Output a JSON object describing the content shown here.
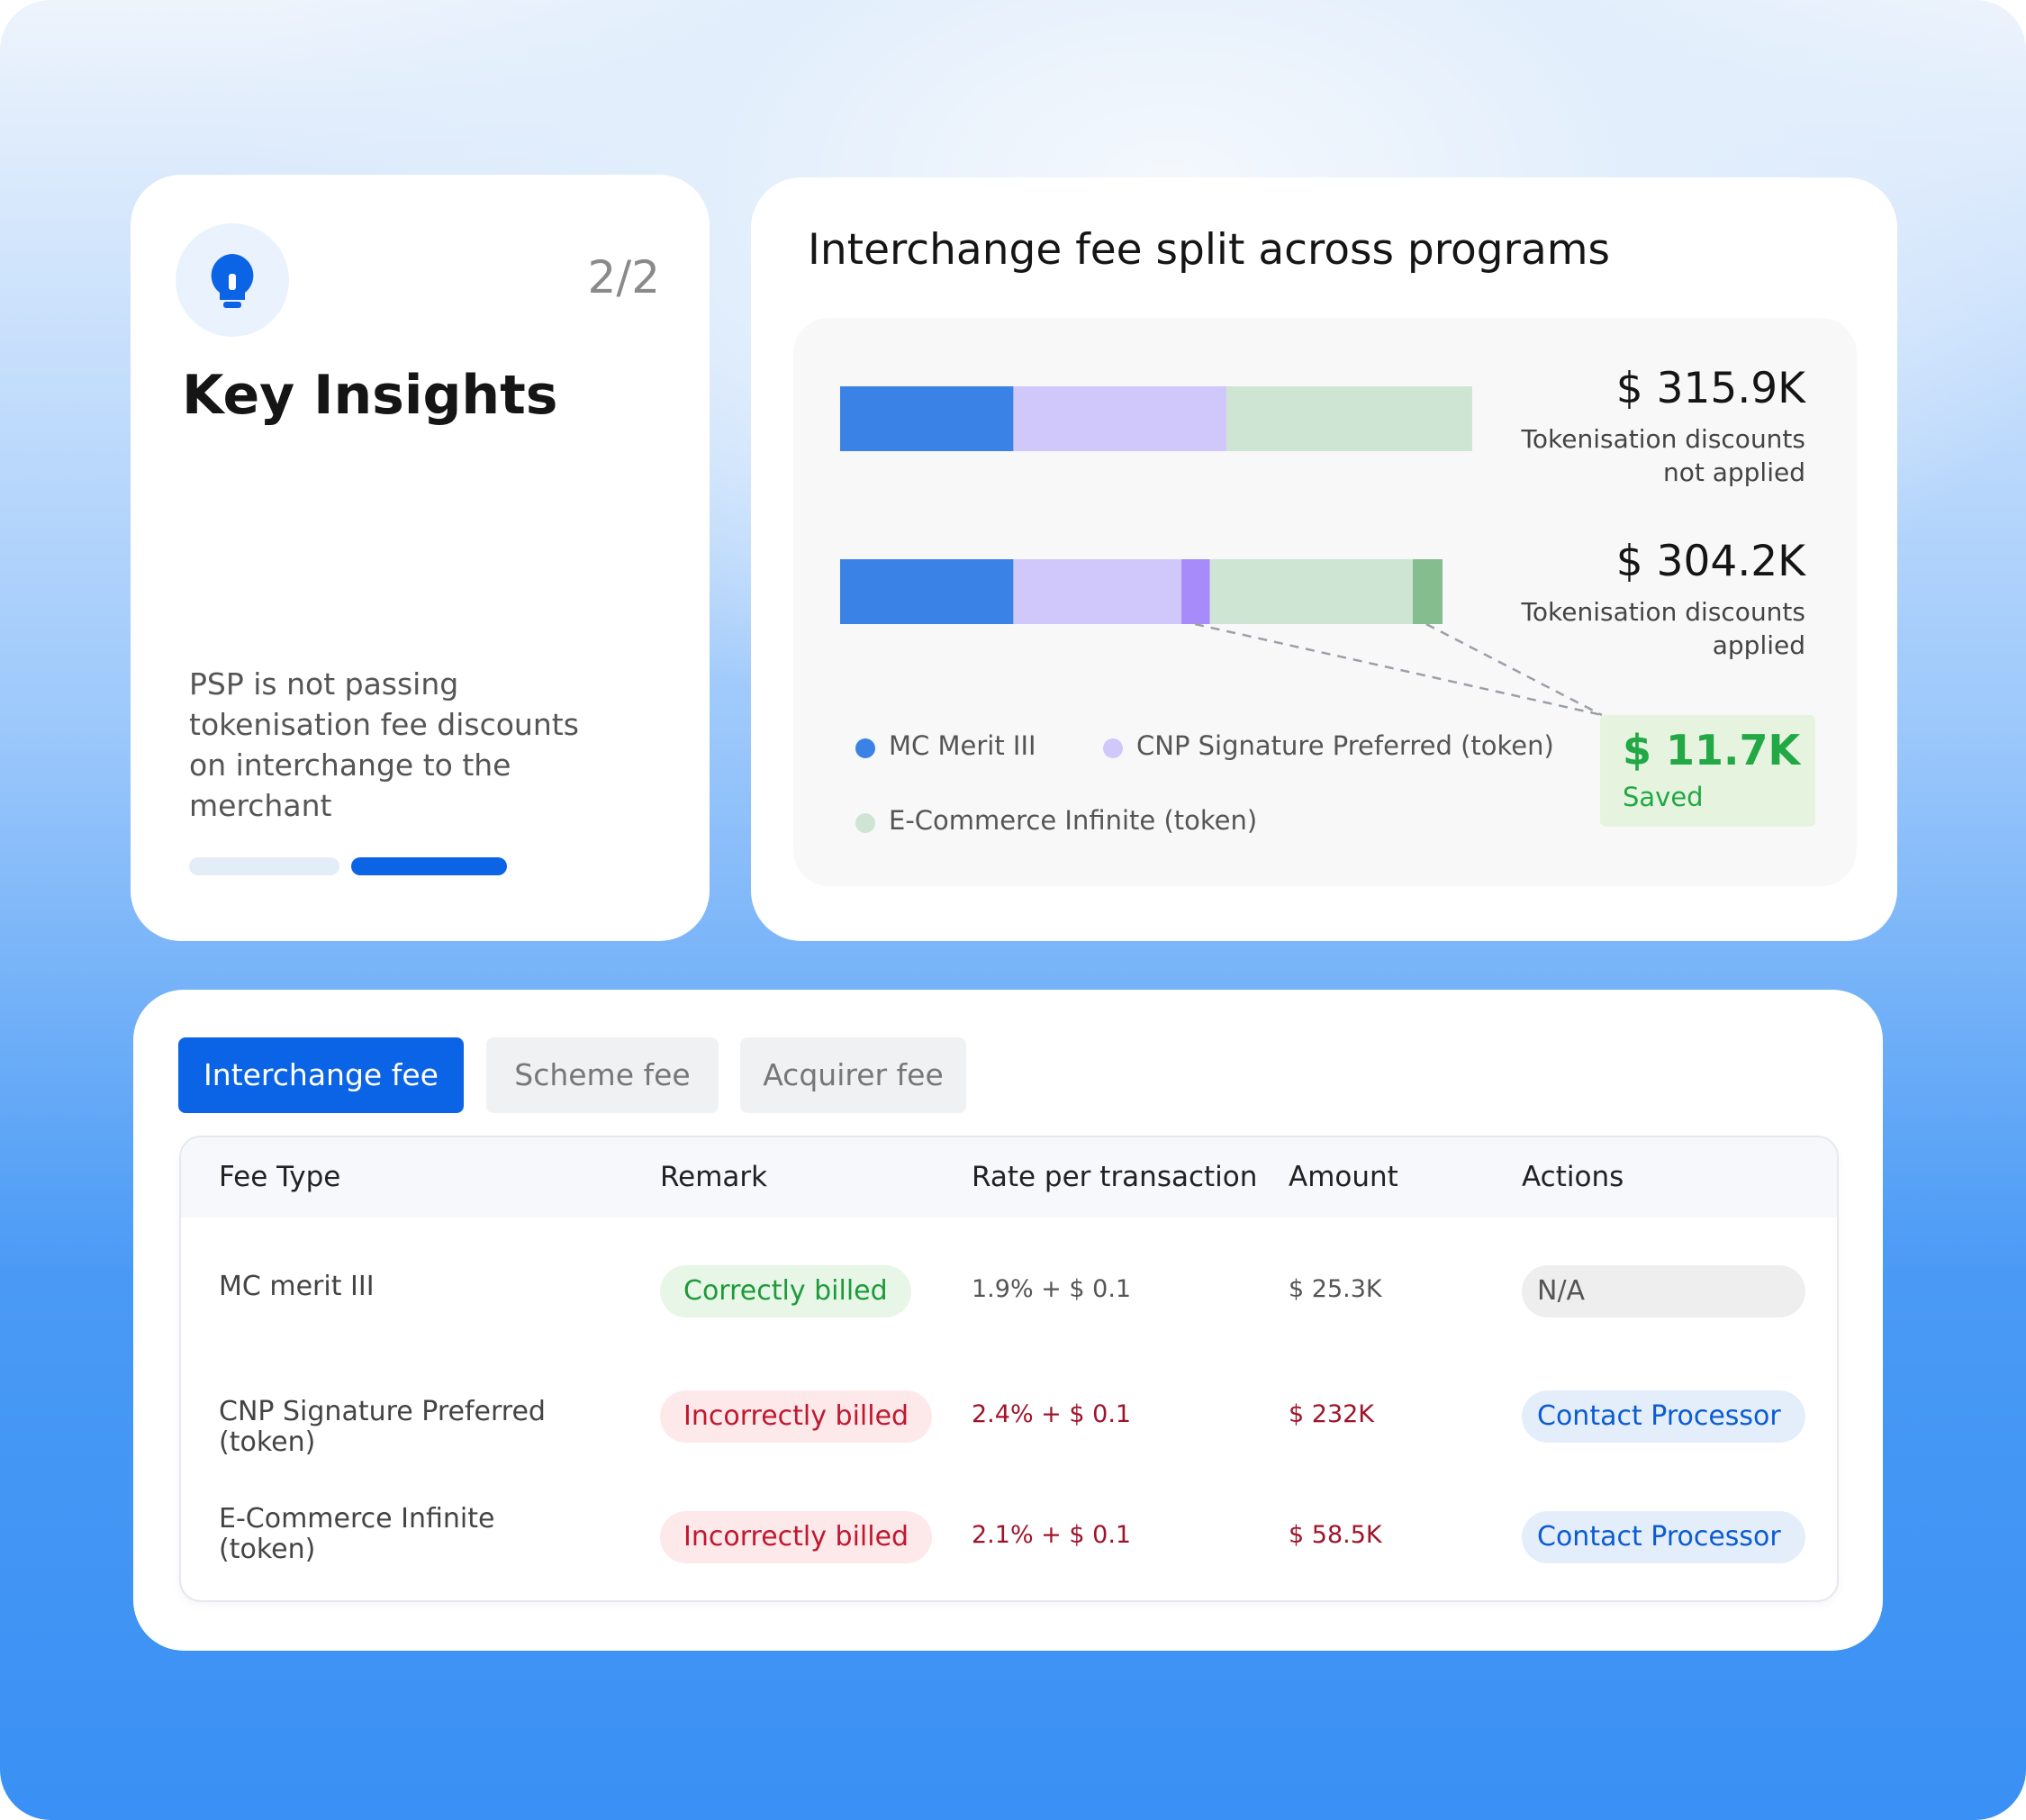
{
  "insight": {
    "counter": "2/2",
    "title": "Key Insights",
    "text": "PSP is not passing tokenisation fee discounts on interchange to the merchant"
  },
  "chart_data": {
    "type": "bar",
    "orientation": "horizontal",
    "stacked": true,
    "title": "Interchange fee split across programs",
    "bars": [
      {
        "total": "$ 315.9K",
        "caption": "Tokenisation discounts not applied",
        "segments": [
          {
            "color": "#3b82e6",
            "value": 86.6
          },
          {
            "color": "#d0c8fb",
            "value": 106.6
          },
          {
            "color": "#cfe5d3",
            "value": 122.7
          }
        ]
      },
      {
        "total": "$ 304.2K",
        "caption": "Tokenisation discounts applied",
        "segments": [
          {
            "color": "#3b82e6",
            "value": 86.6
          },
          {
            "color": "#d0c8fb",
            "value": 84.0
          },
          {
            "color": "#a78bfa",
            "value": 14.2
          },
          {
            "color": "#cfe5d3",
            "value": 101.4
          },
          {
            "color": "#86bd8f",
            "value": 14.9
          }
        ]
      }
    ],
    "legend": [
      {
        "name": "MC Merit III",
        "color": "#3b82e6"
      },
      {
        "name": "CNP Signature Preferred (token)",
        "color": "#d0c8fb"
      },
      {
        "name": "E-Commerce Infinite (token)",
        "color": "#cfe5d3"
      }
    ],
    "saved": {
      "value": "$ 11.7K",
      "label": "Saved",
      "color": "#22a845"
    }
  },
  "tabs": [
    "Interchange fee",
    "Scheme fee",
    "Acquirer fee"
  ],
  "table": {
    "header": [
      "Fee Type",
      "Remark",
      "Rate per transaction",
      "Amount",
      "Actions"
    ],
    "rows": [
      {
        "cells": [
          "MC merit III",
          "Correctly billed",
          "1.9% + $ 0.1",
          "$ 25.3K",
          "N/A"
        ],
        "remark_color": "#1d9a3a",
        "remark_bg": "#e7f6e6",
        "text_color": "#555555",
        "action_color": "#555555",
        "action_bg": "#eeeeee"
      },
      {
        "cells": [
          "CNP Signature Preferred (token)",
          "Incorrectly billed",
          "2.4% + $ 0.1",
          "$ 232K",
          "Contact Processor"
        ],
        "remark_color": "#c0182e",
        "remark_bg": "#fde8ea",
        "text_color": "#a0142a",
        "action_color": "#0b5bd3",
        "action_bg": "#e4eefb"
      },
      {
        "cells": [
          "E-Commerce Infinite (token)",
          "Incorrectly billed",
          "2.1% + $ 0.1",
          "$ 58.5K",
          "Contact Processor"
        ],
        "remark_color": "#c0182e",
        "remark_bg": "#fde8ea",
        "text_color": "#a0142a",
        "action_color": "#0b5bd3",
        "action_bg": "#e4eefb"
      }
    ]
  }
}
